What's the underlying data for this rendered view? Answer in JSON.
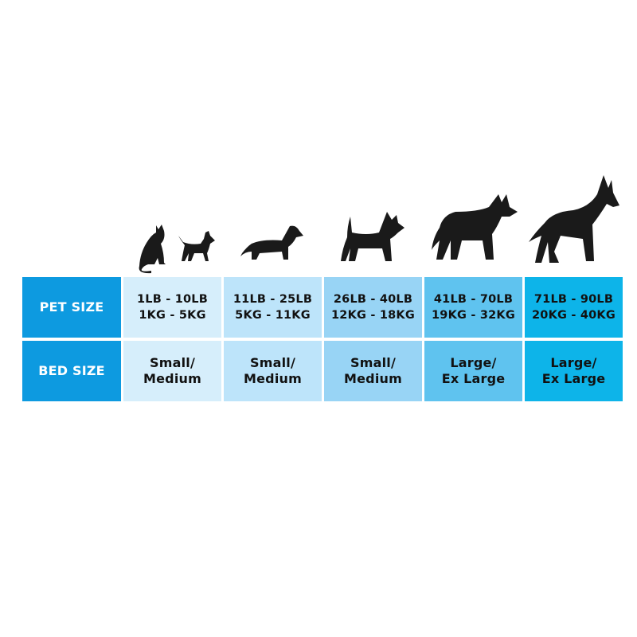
{
  "colors": {
    "label_bg": "#0d9ae0",
    "col1": "#d6eefb",
    "col2": "#bde4fa",
    "col3": "#98d4f5",
    "col4": "#5fc3ef",
    "col5": "#0db4e9",
    "silhouette": "#1a1a1a"
  },
  "icons": [
    "cat-silhouette-icon",
    "chihuahua-silhouette-icon",
    "dachshund-silhouette-icon",
    "terrier-silhouette-icon",
    "husky-silhouette-icon",
    "great-dane-silhouette-icon"
  ],
  "table": {
    "row_labels": [
      "PET SIZE",
      "BED SIZE"
    ],
    "pet_size": [
      "1LB - 10LB\n1KG - 5KG",
      "11LB - 25LB\n5KG - 11KG",
      "26LB - 40LB\n12KG - 18KG",
      "41LB - 70LB\n19KG - 32KG",
      "71LB - 90LB\n20KG - 40KG"
    ],
    "bed_size": [
      "Small/\nMedium",
      "Small/\nMedium",
      "Small/\nMedium",
      "Large/\nEx Large",
      "Large/\nEx Large"
    ]
  }
}
